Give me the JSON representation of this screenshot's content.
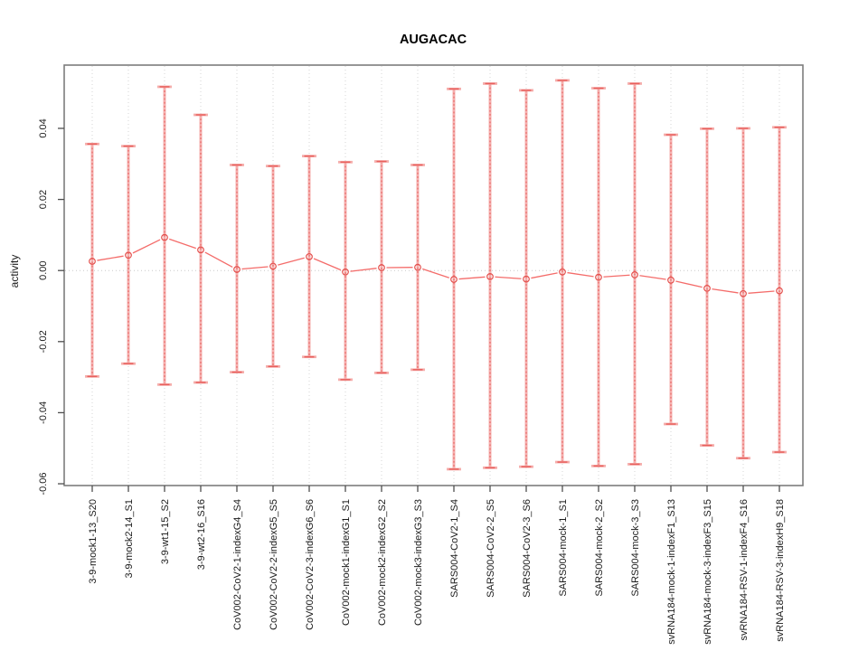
{
  "chart_data": {
    "type": "line",
    "subtype": "points-with-error-bars",
    "title": "AUGACAC",
    "xlabel": "",
    "ylabel": "activity",
    "ylim": [
      -0.0605,
      0.0578
    ],
    "grid": "vertical-dotted-per-category-plus-zero-line",
    "legend": "none",
    "yticks": [
      {
        "value": 0.04,
        "label": "0.04"
      },
      {
        "value": 0.02,
        "label": "0.02"
      },
      {
        "value": 0.0,
        "label": "0.00"
      },
      {
        "value": -0.02,
        "label": "-0.02"
      },
      {
        "value": -0.04,
        "label": "-0.04"
      },
      {
        "value": -0.06,
        "label": "-0.06"
      }
    ],
    "categories": [
      "3-9-mock1-13_S20",
      "3-9-mock2-14_S1",
      "3-9-wt1-15_S2",
      "3-9-wt2-16_S16",
      "CoV002-CoV2-1-indexG4_S4",
      "CoV002-CoV2-2-indexG5_S5",
      "CoV002-CoV2-3-indexG6_S6",
      "CoV002-mock1-indexG1_S1",
      "CoV002-mock2-indexG2_S2",
      "CoV002-mock3-indexG3_S3",
      "SARS004-CoV2-1_S4",
      "SARS004-CoV2-2_S5",
      "SARS004-CoV2-3_S6",
      "SARS004-mock-1_S1",
      "SARS004-mock-2_S2",
      "SARS004-mock-3_S3",
      "svRNA184-mock-1-indexF1_S13",
      "svRNA184-mock-3-indexF3_S15",
      "svRNA184-RSV-1-indexF4_S16",
      "svRNA184-RSV-3-indexH9_S18"
    ],
    "series": [
      {
        "name": "mean",
        "values": [
          0.0026,
          0.0043,
          0.0093,
          0.0058,
          0.0003,
          0.0012,
          0.0039,
          -0.0004,
          0.0008,
          0.0009,
          -0.0025,
          -0.0017,
          -0.0024,
          -0.0004,
          -0.0019,
          -0.0012,
          -0.0027,
          -0.005,
          -0.0065,
          -0.0057
        ]
      },
      {
        "name": "lower",
        "values": [
          -0.0298,
          -0.0262,
          -0.0321,
          -0.0315,
          -0.0286,
          -0.027,
          -0.0243,
          -0.0307,
          -0.0288,
          -0.0279,
          -0.0559,
          -0.0555,
          -0.0552,
          -0.0539,
          -0.055,
          -0.0545,
          -0.0432,
          -0.0492,
          -0.0528,
          -0.0511
        ]
      },
      {
        "name": "upper",
        "values": [
          0.0356,
          0.035,
          0.0517,
          0.0438,
          0.0297,
          0.0294,
          0.0322,
          0.0305,
          0.0307,
          0.0297,
          0.0511,
          0.0526,
          0.0507,
          0.0535,
          0.0513,
          0.0526,
          0.0382,
          0.0399,
          0.04,
          0.0403
        ]
      }
    ],
    "colors": {
      "point": "#e4504d",
      "connect_line": "#f46c6a",
      "errorbar_light": "#f5b0af",
      "errorbar_dash": "#e4514e",
      "cap_light": "#f5aeac",
      "cap_dark": "#e8605d",
      "grid": "#d6d6d6",
      "zero_line": "#c9c9c9",
      "box": "#7d7d7d",
      "tick": "#4d4d4d",
      "text": "#1a1a1a",
      "background": "#ffffff"
    }
  }
}
